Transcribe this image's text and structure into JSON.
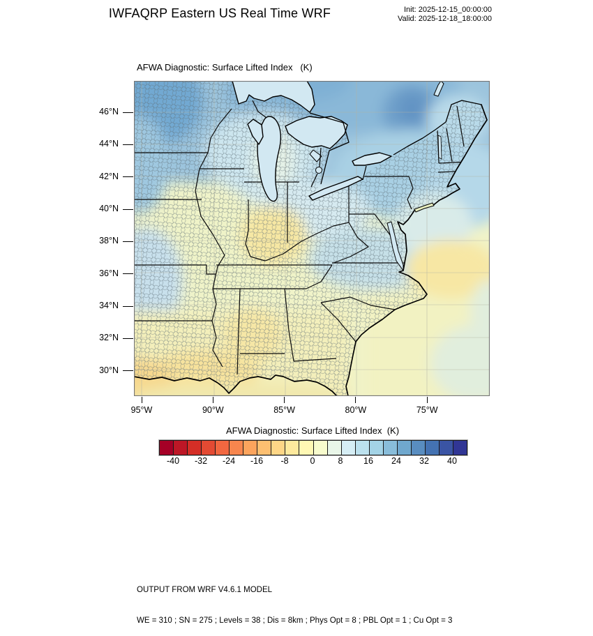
{
  "header": {
    "title": "IWFAQRP Eastern US Real Time WRF",
    "init": "Init: 2025-12-15_00:00:00",
    "valid": "Valid: 2025-12-18_18:00:00"
  },
  "map": {
    "title": "AFWA Diagnostic: Surface Lifted Index   (K)",
    "lat_ticks": [
      "46°N",
      "44°N",
      "42°N",
      "40°N",
      "38°N",
      "36°N",
      "34°N",
      "32°N",
      "30°N"
    ],
    "lon_ticks": [
      "95°W",
      "90°W",
      "85°W",
      "80°W",
      "75°W"
    ]
  },
  "colorbar": {
    "title": "AFWA Diagnostic: Surface Lifted Index  (K)",
    "tick_labels": [
      "-40",
      "-32",
      "-24",
      "-16",
      "-8",
      "0",
      "8",
      "16",
      "24",
      "32",
      "40"
    ],
    "colors": [
      "#a50026",
      "#bd1726",
      "#d42e26",
      "#e34a33",
      "#f16740",
      "#f7864e",
      "#fca45d",
      "#fdbf71",
      "#fed687",
      "#fee99d",
      "#fff8b4",
      "#f8fccd",
      "#e9f6e8",
      "#d6eef5",
      "#bce1ee",
      "#a3d3e6",
      "#89bdda",
      "#70a8ce",
      "#598dc0",
      "#4472b2",
      "#3a54a4",
      "#313695"
    ]
  },
  "footer": {
    "line1": "OUTPUT FROM WRF V4.6.1 MODEL",
    "line2": "WE = 310 ; SN = 275 ; Levels = 38 ; Dis = 8km ; Phys Opt = 8 ; PBL Opt = 1 ; Cu Opt = 3"
  },
  "chart_data": {
    "type": "heatmap",
    "title": "AFWA Diagnostic: Surface Lifted Index  (K)",
    "units": "K",
    "colorbar_tick_values": [
      -40,
      -32,
      -24,
      -16,
      -8,
      0,
      8,
      16,
      24,
      32,
      40
    ],
    "lat_axis_ticks_deg_n": [
      46,
      44,
      42,
      40,
      38,
      36,
      34,
      32,
      30
    ],
    "lon_axis_ticks_deg_w": [
      95,
      90,
      85,
      80,
      75
    ],
    "field_summary": "Lifted index 16-28 K (blue) across the Great Lakes, Canada and Northeast; near 0-8 K (pale yellow) over the lower Mississippi valley, Gulf coast, Southeast and western Atlantic; weak negative/yellow-orange patches over Louisiana, Mississippi-Alabama, southern Indiana-Kentucky and offshore Virginia."
  }
}
